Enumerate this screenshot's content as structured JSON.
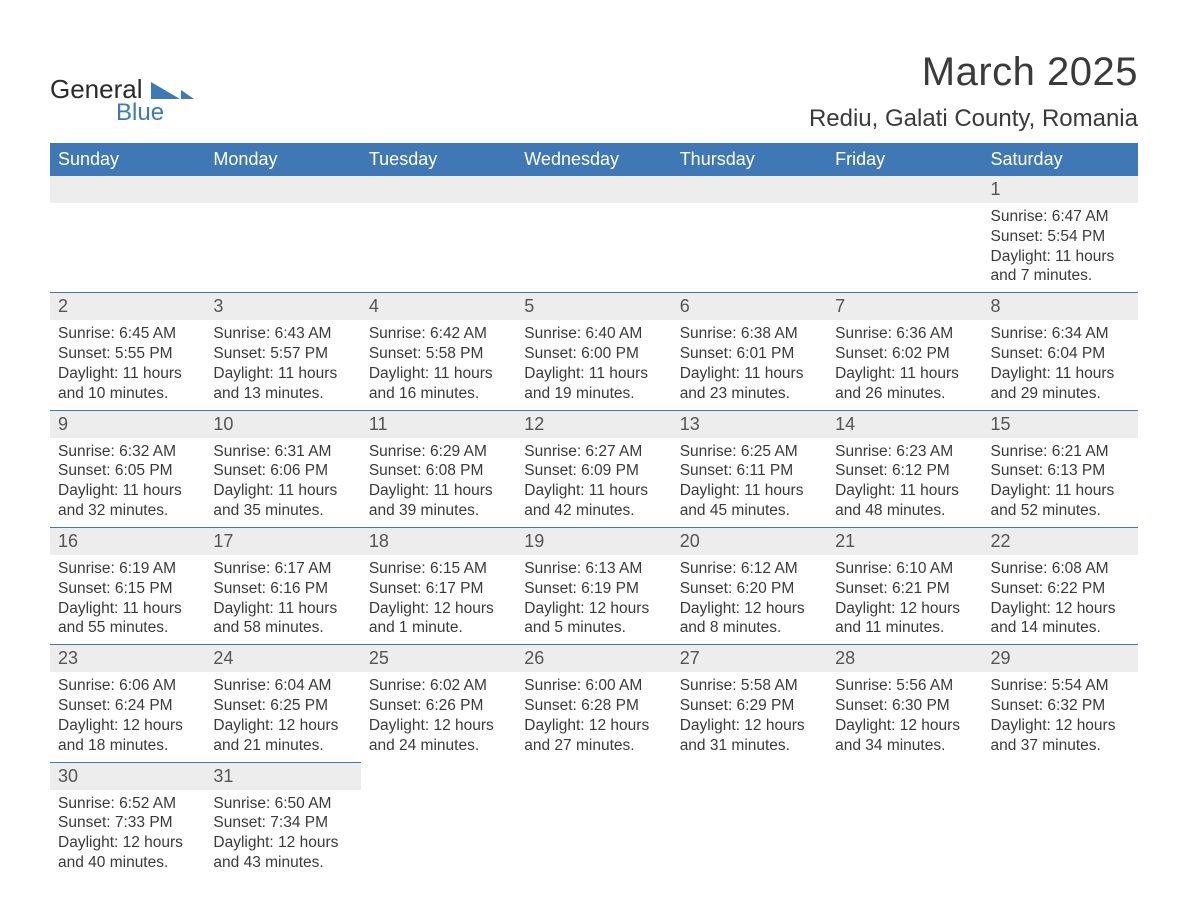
{
  "brand": {
    "name1": "General",
    "name2": "Blue"
  },
  "title": "March 2025",
  "location": "Rediu, Galati County, Romania",
  "colors": {
    "header_bg": "#3f78b5",
    "header_fg": "#ffffff",
    "daynum_bg": "#ededed",
    "text": "#3a3a3a",
    "row_border": "#3f78b5"
  },
  "fonts": {
    "title_pt": 40,
    "location_pt": 24,
    "th_pt": 18,
    "daynum_pt": 18,
    "body_pt": 15.5
  },
  "dow": [
    "Sunday",
    "Monday",
    "Tuesday",
    "Wednesday",
    "Thursday",
    "Friday",
    "Saturday"
  ],
  "weeks": [
    [
      {
        "n": "",
        "sr": "",
        "ss": "",
        "dl": ""
      },
      {
        "n": "",
        "sr": "",
        "ss": "",
        "dl": ""
      },
      {
        "n": "",
        "sr": "",
        "ss": "",
        "dl": ""
      },
      {
        "n": "",
        "sr": "",
        "ss": "",
        "dl": ""
      },
      {
        "n": "",
        "sr": "",
        "ss": "",
        "dl": ""
      },
      {
        "n": "",
        "sr": "",
        "ss": "",
        "dl": ""
      },
      {
        "n": "1",
        "sr": "Sunrise: 6:47 AM",
        "ss": "Sunset: 5:54 PM",
        "dl": "Daylight: 11 hours and 7 minutes."
      }
    ],
    [
      {
        "n": "2",
        "sr": "Sunrise: 6:45 AM",
        "ss": "Sunset: 5:55 PM",
        "dl": "Daylight: 11 hours and 10 minutes."
      },
      {
        "n": "3",
        "sr": "Sunrise: 6:43 AM",
        "ss": "Sunset: 5:57 PM",
        "dl": "Daylight: 11 hours and 13 minutes."
      },
      {
        "n": "4",
        "sr": "Sunrise: 6:42 AM",
        "ss": "Sunset: 5:58 PM",
        "dl": "Daylight: 11 hours and 16 minutes."
      },
      {
        "n": "5",
        "sr": "Sunrise: 6:40 AM",
        "ss": "Sunset: 6:00 PM",
        "dl": "Daylight: 11 hours and 19 minutes."
      },
      {
        "n": "6",
        "sr": "Sunrise: 6:38 AM",
        "ss": "Sunset: 6:01 PM",
        "dl": "Daylight: 11 hours and 23 minutes."
      },
      {
        "n": "7",
        "sr": "Sunrise: 6:36 AM",
        "ss": "Sunset: 6:02 PM",
        "dl": "Daylight: 11 hours and 26 minutes."
      },
      {
        "n": "8",
        "sr": "Sunrise: 6:34 AM",
        "ss": "Sunset: 6:04 PM",
        "dl": "Daylight: 11 hours and 29 minutes."
      }
    ],
    [
      {
        "n": "9",
        "sr": "Sunrise: 6:32 AM",
        "ss": "Sunset: 6:05 PM",
        "dl": "Daylight: 11 hours and 32 minutes."
      },
      {
        "n": "10",
        "sr": "Sunrise: 6:31 AM",
        "ss": "Sunset: 6:06 PM",
        "dl": "Daylight: 11 hours and 35 minutes."
      },
      {
        "n": "11",
        "sr": "Sunrise: 6:29 AM",
        "ss": "Sunset: 6:08 PM",
        "dl": "Daylight: 11 hours and 39 minutes."
      },
      {
        "n": "12",
        "sr": "Sunrise: 6:27 AM",
        "ss": "Sunset: 6:09 PM",
        "dl": "Daylight: 11 hours and 42 minutes."
      },
      {
        "n": "13",
        "sr": "Sunrise: 6:25 AM",
        "ss": "Sunset: 6:11 PM",
        "dl": "Daylight: 11 hours and 45 minutes."
      },
      {
        "n": "14",
        "sr": "Sunrise: 6:23 AM",
        "ss": "Sunset: 6:12 PM",
        "dl": "Daylight: 11 hours and 48 minutes."
      },
      {
        "n": "15",
        "sr": "Sunrise: 6:21 AM",
        "ss": "Sunset: 6:13 PM",
        "dl": "Daylight: 11 hours and 52 minutes."
      }
    ],
    [
      {
        "n": "16",
        "sr": "Sunrise: 6:19 AM",
        "ss": "Sunset: 6:15 PM",
        "dl": "Daylight: 11 hours and 55 minutes."
      },
      {
        "n": "17",
        "sr": "Sunrise: 6:17 AM",
        "ss": "Sunset: 6:16 PM",
        "dl": "Daylight: 11 hours and 58 minutes."
      },
      {
        "n": "18",
        "sr": "Sunrise: 6:15 AM",
        "ss": "Sunset: 6:17 PM",
        "dl": "Daylight: 12 hours and 1 minute."
      },
      {
        "n": "19",
        "sr": "Sunrise: 6:13 AM",
        "ss": "Sunset: 6:19 PM",
        "dl": "Daylight: 12 hours and 5 minutes."
      },
      {
        "n": "20",
        "sr": "Sunrise: 6:12 AM",
        "ss": "Sunset: 6:20 PM",
        "dl": "Daylight: 12 hours and 8 minutes."
      },
      {
        "n": "21",
        "sr": "Sunrise: 6:10 AM",
        "ss": "Sunset: 6:21 PM",
        "dl": "Daylight: 12 hours and 11 minutes."
      },
      {
        "n": "22",
        "sr": "Sunrise: 6:08 AM",
        "ss": "Sunset: 6:22 PM",
        "dl": "Daylight: 12 hours and 14 minutes."
      }
    ],
    [
      {
        "n": "23",
        "sr": "Sunrise: 6:06 AM",
        "ss": "Sunset: 6:24 PM",
        "dl": "Daylight: 12 hours and 18 minutes."
      },
      {
        "n": "24",
        "sr": "Sunrise: 6:04 AM",
        "ss": "Sunset: 6:25 PM",
        "dl": "Daylight: 12 hours and 21 minutes."
      },
      {
        "n": "25",
        "sr": "Sunrise: 6:02 AM",
        "ss": "Sunset: 6:26 PM",
        "dl": "Daylight: 12 hours and 24 minutes."
      },
      {
        "n": "26",
        "sr": "Sunrise: 6:00 AM",
        "ss": "Sunset: 6:28 PM",
        "dl": "Daylight: 12 hours and 27 minutes."
      },
      {
        "n": "27",
        "sr": "Sunrise: 5:58 AM",
        "ss": "Sunset: 6:29 PM",
        "dl": "Daylight: 12 hours and 31 minutes."
      },
      {
        "n": "28",
        "sr": "Sunrise: 5:56 AM",
        "ss": "Sunset: 6:30 PM",
        "dl": "Daylight: 12 hours and 34 minutes."
      },
      {
        "n": "29",
        "sr": "Sunrise: 5:54 AM",
        "ss": "Sunset: 6:32 PM",
        "dl": "Daylight: 12 hours and 37 minutes."
      }
    ],
    [
      {
        "n": "30",
        "sr": "Sunrise: 6:52 AM",
        "ss": "Sunset: 7:33 PM",
        "dl": "Daylight: 12 hours and 40 minutes."
      },
      {
        "n": "31",
        "sr": "Sunrise: 6:50 AM",
        "ss": "Sunset: 7:34 PM",
        "dl": "Daylight: 12 hours and 43 minutes."
      },
      {
        "n": "",
        "sr": "",
        "ss": "",
        "dl": ""
      },
      {
        "n": "",
        "sr": "",
        "ss": "",
        "dl": ""
      },
      {
        "n": "",
        "sr": "",
        "ss": "",
        "dl": ""
      },
      {
        "n": "",
        "sr": "",
        "ss": "",
        "dl": ""
      },
      {
        "n": "",
        "sr": "",
        "ss": "",
        "dl": ""
      }
    ]
  ]
}
